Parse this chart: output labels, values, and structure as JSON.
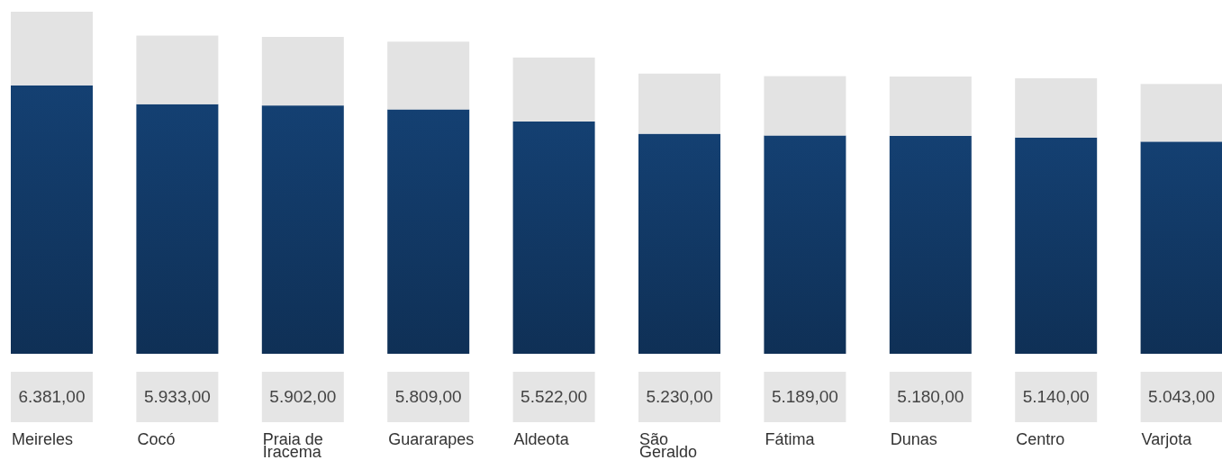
{
  "chart_data": {
    "type": "bar",
    "stacked": true,
    "categories": [
      "Meireles",
      "Cocó",
      "Praia de Iracema",
      "Guararapes",
      "Aldeota",
      "São Geraldo",
      "Fátima",
      "Dunas",
      "Centro",
      "Varjota"
    ],
    "series": [
      {
        "color": "#133c6a",
        "values": [
          6381,
          5933,
          5902,
          5809,
          5522,
          5230,
          5189,
          5180,
          5140,
          5043
        ],
        "value_labels": [
          "6.381,00",
          "5.933,00",
          "5.902,00",
          "5.809,00",
          "5.522,00",
          "5.230,00",
          "5.189,00",
          "5.180,00",
          "5.140,00",
          "5.043,00"
        ]
      },
      {
        "color": "#e3e3e3",
        "values": [
          1750,
          1630,
          1630,
          1610,
          1520,
          1430,
          1410,
          1410,
          1410,
          1370
        ]
      }
    ]
  }
}
